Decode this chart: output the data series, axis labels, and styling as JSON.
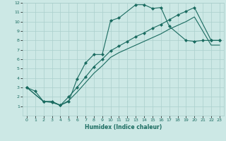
{
  "xlabel": "Humidex (Indice chaleur)",
  "bg_color": "#cce8e5",
  "grid_color": "#aacfcc",
  "line_color": "#1a6b60",
  "xlim": [
    -0.5,
    23.5
  ],
  "ylim": [
    0,
    12
  ],
  "xticks": [
    0,
    1,
    2,
    3,
    4,
    5,
    6,
    7,
    8,
    9,
    10,
    11,
    12,
    13,
    14,
    15,
    16,
    17,
    18,
    19,
    20,
    21,
    22,
    23
  ],
  "yticks": [
    1,
    2,
    3,
    4,
    5,
    6,
    7,
    8,
    9,
    10,
    11,
    12
  ],
  "curve1_x": [
    0,
    1,
    2,
    3,
    4,
    5,
    6,
    7,
    8,
    9,
    10,
    11,
    13,
    14,
    15,
    16,
    17,
    19,
    20,
    21,
    22,
    23
  ],
  "curve1_y": [
    3,
    2.6,
    1.5,
    1.4,
    1.1,
    1.5,
    3.9,
    5.6,
    6.5,
    6.5,
    10.1,
    10.4,
    11.8,
    11.8,
    11.4,
    11.5,
    9.5,
    8.0,
    7.9,
    8.0,
    8.0,
    8.0
  ],
  "curve2_x": [
    0,
    2,
    3,
    4,
    5,
    6,
    7,
    8,
    9,
    10,
    11,
    12,
    13,
    14,
    15,
    16,
    17,
    18,
    19,
    20,
    22,
    23
  ],
  "curve2_y": [
    3,
    1.5,
    1.5,
    1.1,
    2.0,
    3.0,
    4.1,
    5.2,
    6.0,
    6.9,
    7.4,
    7.9,
    8.4,
    8.8,
    9.3,
    9.7,
    10.2,
    10.7,
    11.1,
    11.5,
    8.0,
    8.0
  ],
  "curve3_x": [
    0,
    2,
    3,
    4,
    5,
    6,
    7,
    8,
    9,
    10,
    11,
    12,
    13,
    14,
    15,
    16,
    17,
    18,
    19,
    20,
    22,
    23
  ],
  "curve3_y": [
    3,
    1.5,
    1.5,
    1.1,
    1.6,
    2.5,
    3.5,
    4.5,
    5.3,
    6.2,
    6.7,
    7.1,
    7.5,
    7.9,
    8.3,
    8.7,
    9.2,
    9.6,
    10.0,
    10.5,
    7.5,
    7.5
  ]
}
